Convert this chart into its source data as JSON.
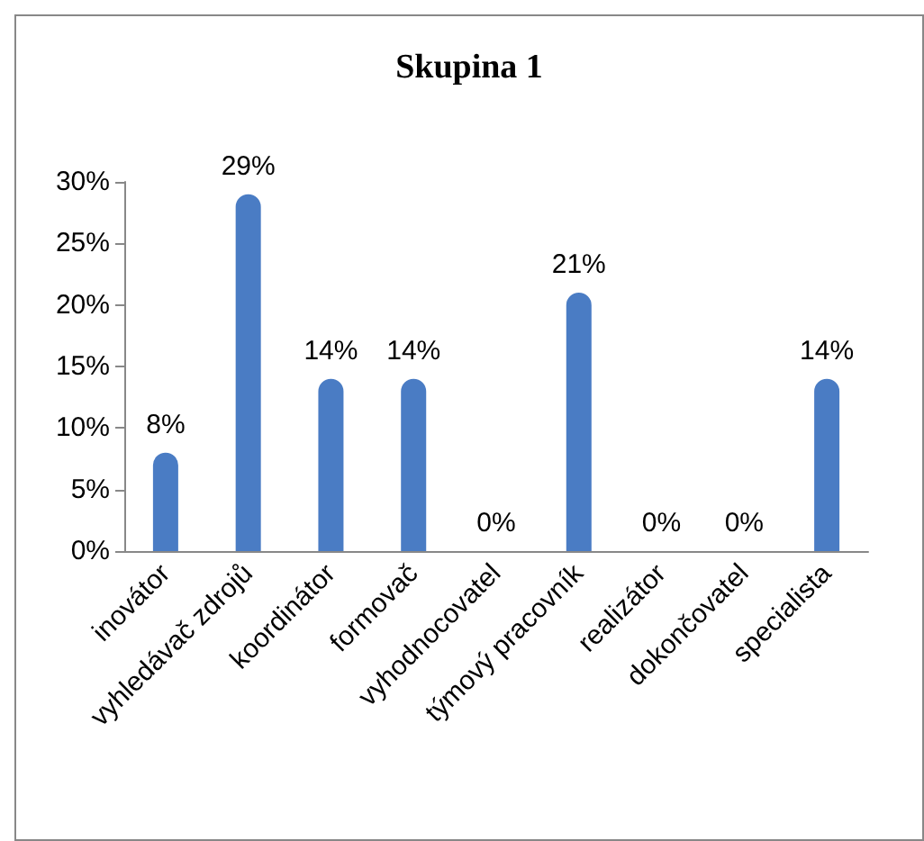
{
  "chart_data": {
    "type": "bar",
    "title": "Skupina 1",
    "categories": [
      "inovátor",
      "vyhledávač zdrojů",
      "koordinátor",
      "formovač",
      "vyhodnocovatel",
      "týmový pracovník",
      "realizátor",
      "dokončovatel",
      "specialista"
    ],
    "values": [
      8,
      29,
      14,
      14,
      0,
      21,
      0,
      0,
      14
    ],
    "value_labels": [
      "8%",
      "29%",
      "14%",
      "14%",
      "0%",
      "21%",
      "0%",
      "0%",
      "14%"
    ],
    "color": "#4a7cc4",
    "ylim": [
      0,
      30
    ],
    "yticks": [
      {
        "value": 0,
        "label": "0%"
      },
      {
        "value": 5,
        "label": "5%"
      },
      {
        "value": 10,
        "label": "10%"
      },
      {
        "value": 15,
        "label": "15%"
      },
      {
        "value": 20,
        "label": "20%"
      },
      {
        "value": 25,
        "label": "25%"
      },
      {
        "value": 30,
        "label": "30%"
      }
    ],
    "grid": false
  }
}
